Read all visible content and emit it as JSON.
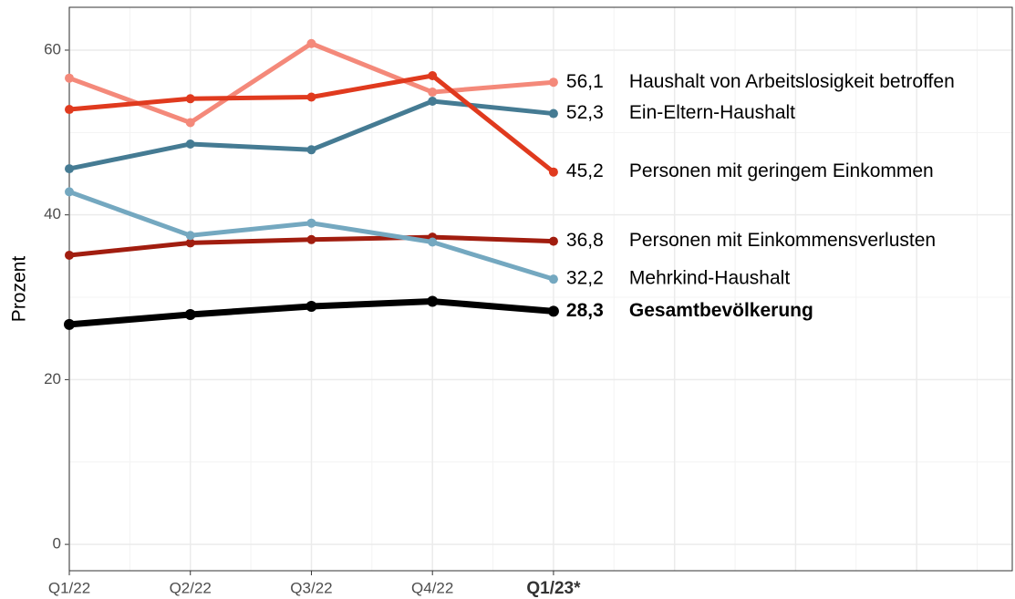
{
  "chart_data": {
    "type": "line",
    "y_label": "Prozent",
    "categories": [
      "Q1/22",
      "Q2/22",
      "Q3/22",
      "Q4/22",
      "Q1/23*"
    ],
    "ylim": [
      -3.2,
      65.2
    ],
    "yticks": [
      0,
      20,
      40,
      60
    ],
    "xlim": [
      0,
      7.79
    ],
    "grid": true,
    "series": [
      {
        "name": "Haushalt von Arbeitslosigkeit betroffen",
        "color": "#f4897a",
        "values": [
          56.6,
          51.2,
          60.8,
          54.9,
          56.1
        ],
        "value_labels": [
          null,
          null,
          null,
          null,
          "56,1"
        ]
      },
      {
        "name": "Ein-Eltern-Haushalt",
        "color": "#457b93",
        "values": [
          45.6,
          48.6,
          47.9,
          53.8,
          52.3
        ],
        "value_labels": [
          null,
          null,
          null,
          null,
          "52,3"
        ]
      },
      {
        "name": "Personen mit geringem Einkommen",
        "color": "#e03a1e",
        "values": [
          52.8,
          54.1,
          54.3,
          56.9,
          45.2
        ],
        "value_labels": [
          null,
          null,
          null,
          null,
          "45,2"
        ]
      },
      {
        "name": "Personen mit Einkommensverlusten",
        "color": "#a11d0f",
        "values": [
          35.1,
          36.6,
          37.0,
          37.3,
          36.8
        ],
        "value_labels": [
          null,
          null,
          null,
          null,
          "36,8"
        ]
      },
      {
        "name": "Mehrkind-Haushalt",
        "color": "#74a8c0",
        "values": [
          42.8,
          37.5,
          39.0,
          36.7,
          32.2
        ],
        "value_labels": [
          null,
          null,
          null,
          null,
          "32,2"
        ]
      },
      {
        "name": "Gesamtbevölkerung",
        "color": "#000000",
        "highlight": true,
        "values": [
          26.7,
          27.9,
          28.9,
          29.5,
          28.3
        ],
        "value_labels": [
          null,
          null,
          null,
          null,
          "28,3"
        ]
      }
    ]
  }
}
